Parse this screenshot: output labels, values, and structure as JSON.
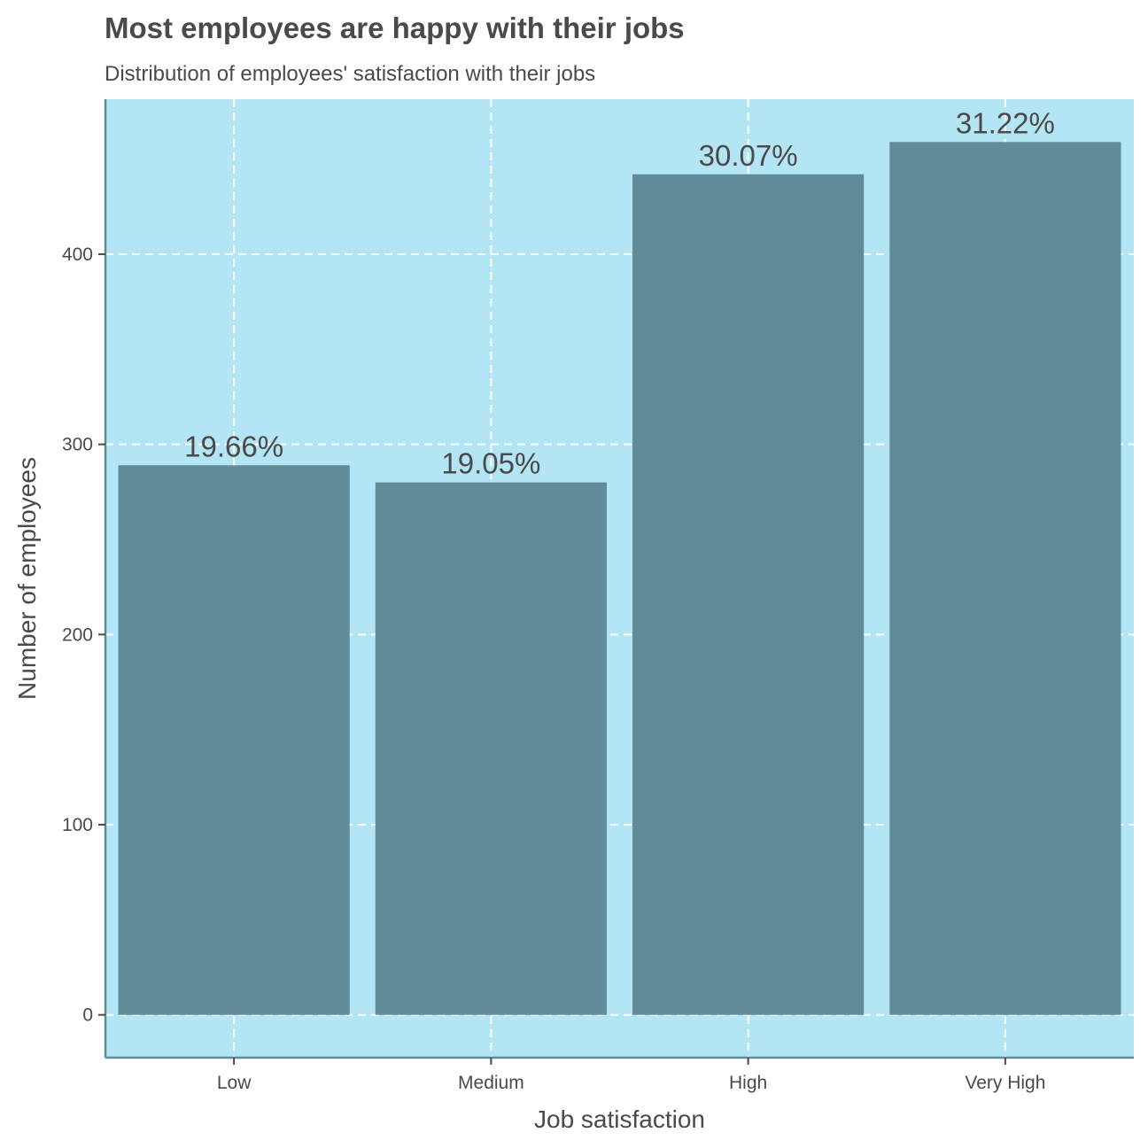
{
  "chart_data": {
    "type": "bar",
    "title": "Most employees are happy with their jobs",
    "subtitle": "Distribution of employees' satisfaction with their jobs",
    "xlabel": "Job satisfaction",
    "ylabel": "Number of employees",
    "categories": [
      "Low",
      "Medium",
      "High",
      "Very High"
    ],
    "values": [
      289,
      280,
      442,
      459
    ],
    "data_labels": [
      "19.66%",
      "19.05%",
      "30.07%",
      "31.22%"
    ],
    "yticks": [
      0,
      100,
      200,
      300,
      400
    ],
    "ytick_labels": [
      "0",
      "100",
      "200",
      "300",
      "400"
    ],
    "ylim": [
      -22.5,
      481.5
    ],
    "grid": true,
    "grid_style": "dashed",
    "legend": "none",
    "colors": {
      "panel_background": "#b3e5f5",
      "bar_fill": "#628b99",
      "grid": "#ffffff",
      "axis_line": "#628b99",
      "text": "#4a4a4a"
    }
  }
}
